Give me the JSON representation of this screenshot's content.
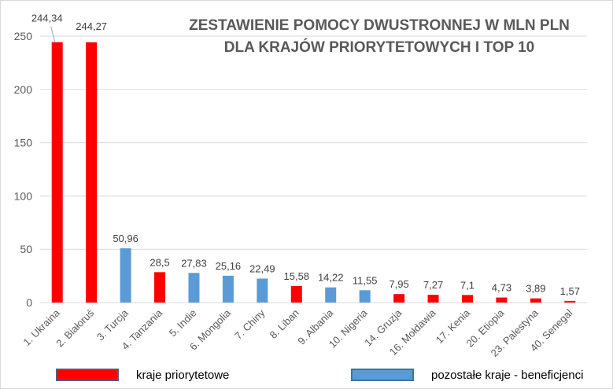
{
  "chart_data": {
    "type": "bar",
    "title": [
      "ZESTAWIENIE POMOCY DWUSTRONNEJ W MLN PLN",
      "DLA KRAJÓW PRIORYTETOWYCH I TOP 10"
    ],
    "categories": [
      "1. Ukraina",
      "2. Białoruś",
      "3. Turcja",
      "4. Tanzania",
      "5. Indie",
      "6. Mongolia",
      "7. Chiny",
      "8. Liban",
      "9. Albania",
      "10. Nigeria",
      "14. Gruzja",
      "16. Mołdawia",
      "17. Kenia",
      "20. Etiopia",
      "23. Palestyna",
      "40. Senegal"
    ],
    "values": [
      244.34,
      244.27,
      50.96,
      28.5,
      27.83,
      25.16,
      22.49,
      15.58,
      14.22,
      11.55,
      7.95,
      7.27,
      7.1,
      4.73,
      3.89,
      1.57
    ],
    "data_labels": [
      "244,34",
      "244,27",
      "50,96",
      "28,5",
      "27,83",
      "25,16",
      "22,49",
      "15,58",
      "14,22",
      "11,55",
      "7,95",
      "7,27",
      "7,1",
      "4,73",
      "3,89",
      "1,57"
    ],
    "groups": [
      "priority",
      "priority",
      "other",
      "priority",
      "other",
      "other",
      "other",
      "priority",
      "other",
      "other",
      "priority",
      "priority",
      "priority",
      "priority",
      "priority",
      "priority"
    ],
    "ylim": [
      0,
      250
    ],
    "yticks": [
      "0",
      "50",
      "100",
      "150",
      "200",
      "250"
    ],
    "grid": true,
    "legend": {
      "placement": "bottom",
      "items": [
        {
          "key": "priority",
          "label": "kraje priorytetowe",
          "color": "#ff0000"
        },
        {
          "key": "other",
          "label": "pozostałe kraje - beneficjenci",
          "color": "#5b9bd5"
        }
      ]
    }
  }
}
